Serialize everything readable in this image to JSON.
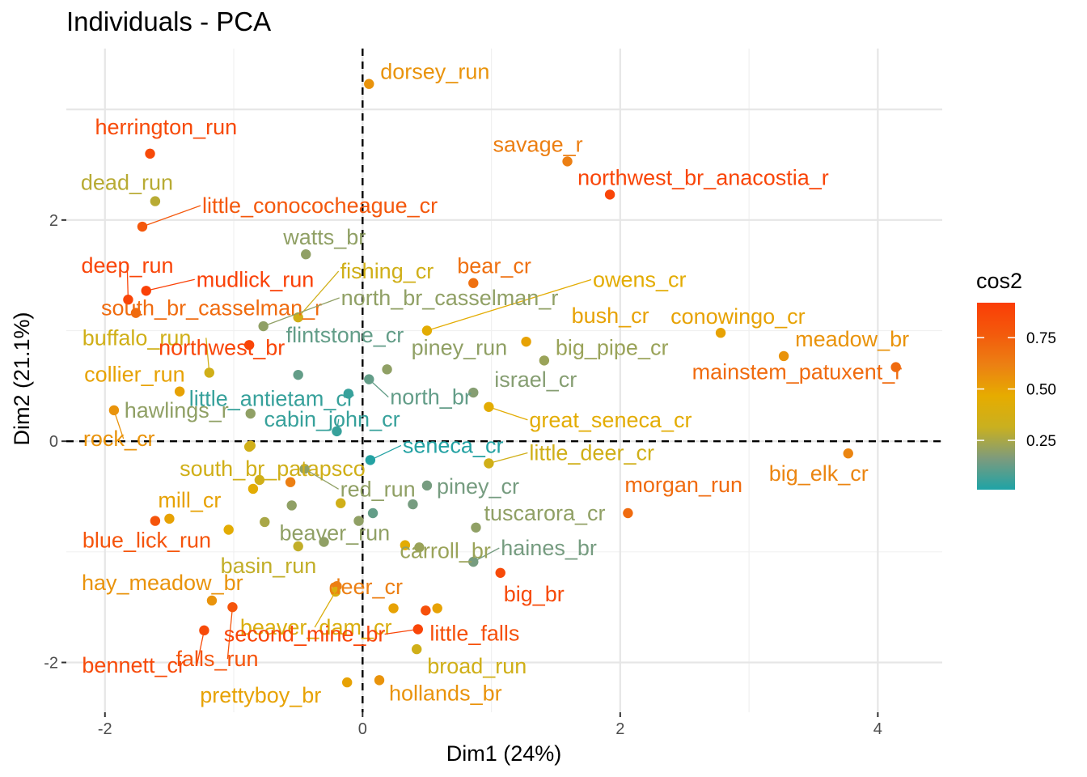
{
  "chart_data": {
    "type": "scatter",
    "title": "Individuals - PCA",
    "xlabel": "Dim1 (24%)",
    "ylabel": "Dim2 (21.1%)",
    "xlim": [
      -2.3,
      4.5
    ],
    "ylim": [
      -2.45,
      3.55
    ],
    "xticks": [
      -2,
      0,
      2,
      4
    ],
    "yticks": [
      -2,
      0,
      2
    ],
    "grid": true,
    "legend": {
      "title": "cos2",
      "position": "right",
      "ticks": [
        0.75,
        0.5,
        0.25
      ],
      "range": [
        0.01,
        0.92
      ],
      "colors": [
        "#1ea3a6",
        "#7d9b7d",
        "#c9b020",
        "#e6ac00",
        "#ec8013",
        "#f35a0c",
        "#fb3d06"
      ]
    },
    "points": [
      {
        "label": "dorsey_run",
        "x": 0.05,
        "y": 3.23,
        "cos2": 0.55
      },
      {
        "label": "herrington_run",
        "x": -1.65,
        "y": 2.6,
        "cos2": 0.85
      },
      {
        "label": "savage_r",
        "x": 1.59,
        "y": 2.53,
        "cos2": 0.62
      },
      {
        "label": "northwest_br_anacostia_r",
        "x": 1.92,
        "y": 2.23,
        "cos2": 0.88
      },
      {
        "label": "dead_run",
        "x": -1.61,
        "y": 2.17,
        "cos2": 0.28
      },
      {
        "label": "little_conococheague_cr",
        "x": -1.71,
        "y": 1.94,
        "cos2": 0.78
      },
      {
        "label": "watts_br",
        "x": -0.44,
        "y": 1.69,
        "cos2": 0.2
      },
      {
        "label": "deep_run",
        "x": -1.82,
        "y": 1.28,
        "cos2": 0.88
      },
      {
        "label": "mudlick_run",
        "x": -1.68,
        "y": 1.36,
        "cos2": 0.9
      },
      {
        "label": "bear_cr",
        "x": 0.86,
        "y": 1.43,
        "cos2": 0.68
      },
      {
        "label": "owens_cr",
        "x": 0.5,
        "y": 1.0,
        "cos2": 0.45
      },
      {
        "label": "fishing_cr",
        "x": -0.5,
        "y": 1.12,
        "cos2": 0.35
      },
      {
        "label": "south_br_casselman_r",
        "x": -1.76,
        "y": 1.16,
        "cos2": 0.7
      },
      {
        "label": "north_br_casselman_r",
        "x": -0.77,
        "y": 1.04,
        "cos2": 0.2
      },
      {
        "label": "bush_cr",
        "x": 1.27,
        "y": 0.9,
        "cos2": 0.5
      },
      {
        "label": "conowingo_cr",
        "x": 2.78,
        "y": 0.98,
        "cos2": 0.5
      },
      {
        "label": "buffalo_run",
        "x": -1.19,
        "y": 0.62,
        "cos2": 0.35
      },
      {
        "label": "northwest_br",
        "x": -0.88,
        "y": 0.87,
        "cos2": 0.88
      },
      {
        "label": "flintstone_cr",
        "x": -0.5,
        "y": 0.6,
        "cos2": 0.12
      },
      {
        "label": "big_pipe_cr",
        "x": 1.41,
        "y": 0.73,
        "cos2": 0.22
      },
      {
        "label": "piney_run",
        "x": 0.19,
        "y": 0.65,
        "cos2": 0.2
      },
      {
        "label": "meadow_br",
        "x": 3.27,
        "y": 0.77,
        "cos2": 0.55
      },
      {
        "label": "mainstem_patuxent_r",
        "x": 4.14,
        "y": 0.67,
        "cos2": 0.7
      },
      {
        "label": "collier_run",
        "x": -1.42,
        "y": 0.45,
        "cos2": 0.5
      },
      {
        "label": "israel_cr",
        "x": 0.86,
        "y": 0.44,
        "cos2": 0.18
      },
      {
        "label": "little_antietam_cr",
        "x": -0.11,
        "y": 0.43,
        "cos2": 0.05
      },
      {
        "label": "north_br",
        "x": 0.05,
        "y": 0.56,
        "cos2": 0.12
      },
      {
        "label": "hawlings_r",
        "x": -0.87,
        "y": 0.25,
        "cos2": 0.2
      },
      {
        "label": "great_seneca_cr",
        "x": 0.98,
        "y": 0.31,
        "cos2": 0.45
      },
      {
        "label": "rock_cr",
        "x": -1.93,
        "y": 0.28,
        "cos2": 0.55
      },
      {
        "label": "cabin_john_cr",
        "x": -0.2,
        "y": 0.09,
        "cos2": 0.05
      },
      {
        "label": "seneca_cr",
        "x": 0.06,
        "y": -0.17,
        "cos2": 0.02
      },
      {
        "label": "little_deer_cr",
        "x": 0.98,
        "y": -0.2,
        "cos2": 0.35
      },
      {
        "label": "big_elk_cr",
        "x": 3.77,
        "y": -0.11,
        "cos2": 0.6
      },
      {
        "label": "south_br_patapsco",
        "x": -0.88,
        "y": -0.05,
        "cos2": 0.35
      },
      {
        "label": "red_run",
        "x": -0.45,
        "y": -0.25,
        "cos2": 0.2
      },
      {
        "label": "piney_cr",
        "x": 0.5,
        "y": -0.4,
        "cos2": 0.15
      },
      {
        "label": "morgan_run",
        "x": 2.06,
        "y": -0.65,
        "cos2": 0.7
      },
      {
        "label": "mill_cr",
        "x": -1.5,
        "y": -0.7,
        "cos2": 0.5
      },
      {
        "label": "blue_lick_run",
        "x": -1.61,
        "y": -0.72,
        "cos2": 0.8
      },
      {
        "label": "tuscarora_cr",
        "x": 0.88,
        "y": -0.78,
        "cos2": 0.2
      },
      {
        "label": "beaver_run",
        "x": -0.3,
        "y": -0.91,
        "cos2": 0.2
      },
      {
        "label": "haines_br",
        "x": 0.86,
        "y": -1.09,
        "cos2": 0.15
      },
      {
        "label": "basin_run",
        "x": -0.5,
        "y": -0.95,
        "cos2": 0.3
      },
      {
        "label": "carroll_br",
        "x": 0.44,
        "y": -0.96,
        "cos2": 0.22
      },
      {
        "label": "big_br",
        "x": 1.07,
        "y": -1.19,
        "cos2": 0.85
      },
      {
        "label": "hay_meadow_br",
        "x": -1.17,
        "y": -1.44,
        "cos2": 0.55
      },
      {
        "label": "deer_cr",
        "x": -0.2,
        "y": -1.31,
        "cos2": 0.62
      },
      {
        "label": "beaver_dam_cr",
        "x": -0.21,
        "y": -1.36,
        "cos2": 0.4
      },
      {
        "label": "little_falls",
        "x": 0.49,
        "y": -1.53,
        "cos2": 0.82
      },
      {
        "label": "falls_run",
        "x": -1.01,
        "y": -1.5,
        "cos2": 0.8
      },
      {
        "label": "bennett_cr",
        "x": -1.23,
        "y": -1.71,
        "cos2": 0.85
      },
      {
        "label": "second_mine_br",
        "x": 0.43,
        "y": -1.7,
        "cos2": 0.88
      },
      {
        "label": "broad_run",
        "x": 0.42,
        "y": -1.88,
        "cos2": 0.35
      },
      {
        "label": "prettyboy_br",
        "x": -0.12,
        "y": -2.18,
        "cos2": 0.5
      },
      {
        "label": "hollands_br",
        "x": 0.13,
        "y": -2.16,
        "cos2": 0.55
      },
      {
        "label": "",
        "x": -0.87,
        "y": -0.04,
        "cos2": 0.35
      },
      {
        "label": "",
        "x": -0.8,
        "y": -0.35,
        "cos2": 0.35
      },
      {
        "label": "",
        "x": -0.85,
        "y": -0.43,
        "cos2": 0.45
      },
      {
        "label": "",
        "x": -0.56,
        "y": -0.37,
        "cos2": 0.62
      },
      {
        "label": "",
        "x": -0.55,
        "y": -0.58,
        "cos2": 0.2
      },
      {
        "label": "",
        "x": -0.17,
        "y": -0.56,
        "cos2": 0.35
      },
      {
        "label": "",
        "x": 0.08,
        "y": -0.65,
        "cos2": 0.12
      },
      {
        "label": "",
        "x": 0.39,
        "y": -0.57,
        "cos2": 0.15
      },
      {
        "label": "",
        "x": -0.03,
        "y": -0.72,
        "cos2": 0.2
      },
      {
        "label": "",
        "x": -0.76,
        "y": -0.73,
        "cos2": 0.25
      },
      {
        "label": "",
        "x": -1.04,
        "y": -0.8,
        "cos2": 0.45
      },
      {
        "label": "",
        "x": 0.33,
        "y": -0.94,
        "cos2": 0.45
      },
      {
        "label": "",
        "x": 0.24,
        "y": -1.51,
        "cos2": 0.5
      },
      {
        "label": "",
        "x": 0.58,
        "y": -1.51,
        "cos2": 0.5
      }
    ]
  }
}
